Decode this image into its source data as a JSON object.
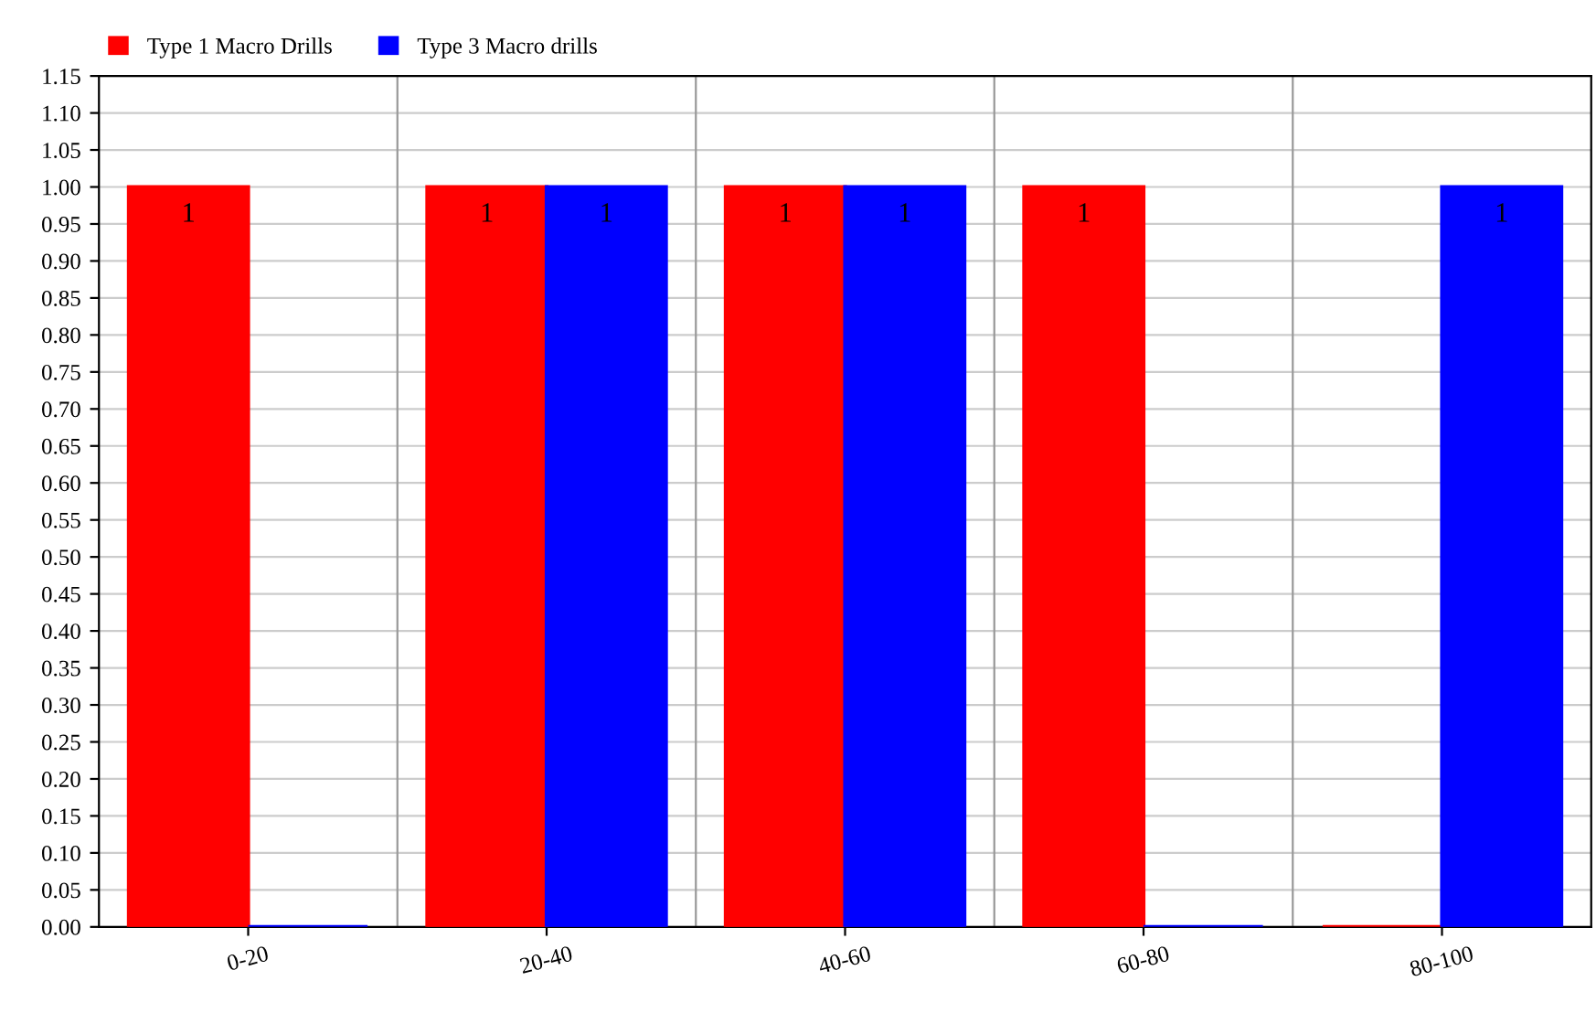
{
  "chart_data": {
    "type": "bar",
    "categories": [
      "0-20",
      "20-40",
      "40-60",
      "60-80",
      "80-100"
    ],
    "series": [
      {
        "name": "Type 1 Macro Drills",
        "color": "#ff0000",
        "values": [
          1,
          1,
          1,
          1,
          0
        ],
        "value_labels": [
          "1",
          "1",
          "1",
          "1",
          null
        ]
      },
      {
        "name": "Type 3 Macro drills",
        "color": "#0000ff",
        "values": [
          0,
          1,
          1,
          0,
          1
        ],
        "value_labels": [
          null,
          "1",
          "1",
          null,
          "1"
        ]
      }
    ],
    "ylim": [
      0,
      1.15
    ],
    "yticks": [
      {
        "value": 0,
        "label": "0.00"
      },
      {
        "value": 0.05,
        "label": "0.05"
      },
      {
        "value": 0.1,
        "label": "0.10"
      },
      {
        "value": 0.15,
        "label": "0.15"
      },
      {
        "value": 0.2,
        "label": "0.20"
      },
      {
        "value": 0.25,
        "label": "0.25"
      },
      {
        "value": 0.3,
        "label": "0.30"
      },
      {
        "value": 0.35,
        "label": "0.35"
      },
      {
        "value": 0.4,
        "label": "0.40"
      },
      {
        "value": 0.45,
        "label": "0.45"
      },
      {
        "value": 0.5,
        "label": "0.50"
      },
      {
        "value": 0.55,
        "label": "0.55"
      },
      {
        "value": 0.6,
        "label": "0.60"
      },
      {
        "value": 0.65,
        "label": "0.65"
      },
      {
        "value": 0.7,
        "label": "0.70"
      },
      {
        "value": 0.75,
        "label": "0.75"
      },
      {
        "value": 0.8,
        "label": "0.80"
      },
      {
        "value": 0.85,
        "label": "0.85"
      },
      {
        "value": 0.9,
        "label": "0.90"
      },
      {
        "value": 0.95,
        "label": "0.95"
      },
      {
        "value": 1,
        "label": "1.00"
      },
      {
        "value": 1.05,
        "label": "1.05"
      },
      {
        "value": 1.1,
        "label": "1.10"
      },
      {
        "value": 1.15,
        "label": "1.15"
      }
    ],
    "grid": "y",
    "legend": "top left"
  }
}
